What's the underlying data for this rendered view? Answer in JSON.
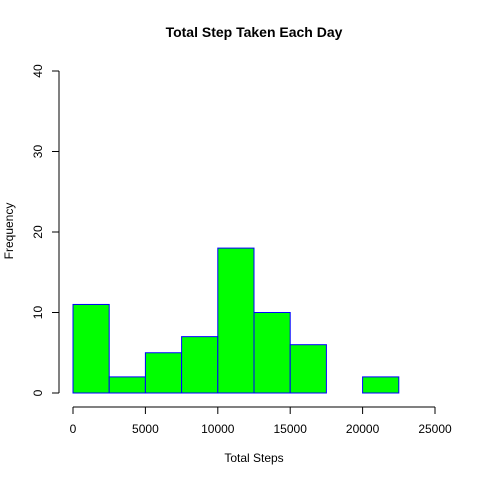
{
  "chart_data": {
    "type": "bar",
    "title": "Total Step Taken Each Day",
    "xlabel": "Total Steps",
    "ylabel": "Frequency",
    "bins": [
      {
        "start": 0,
        "end": 2500,
        "count": 11
      },
      {
        "start": 2500,
        "end": 5000,
        "count": 2
      },
      {
        "start": 5000,
        "end": 7500,
        "count": 5
      },
      {
        "start": 7500,
        "end": 10000,
        "count": 7
      },
      {
        "start": 10000,
        "end": 12500,
        "count": 18
      },
      {
        "start": 12500,
        "end": 15000,
        "count": 10
      },
      {
        "start": 15000,
        "end": 17500,
        "count": 6
      },
      {
        "start": 17500,
        "end": 20000,
        "count": 0
      },
      {
        "start": 20000,
        "end": 22500,
        "count": 2
      },
      {
        "start": 22500,
        "end": 25000,
        "count": 0
      }
    ],
    "xlim": [
      0,
      25000
    ],
    "ylim": [
      0,
      40
    ],
    "xticks": [
      "0",
      "5000",
      "10000",
      "15000",
      "20000",
      "25000"
    ],
    "yticks": [
      "0",
      "10",
      "20",
      "30",
      "40"
    ],
    "grid": false,
    "colors": {
      "bar_fill": "#00ff00",
      "bar_border": "#0000ff"
    }
  }
}
